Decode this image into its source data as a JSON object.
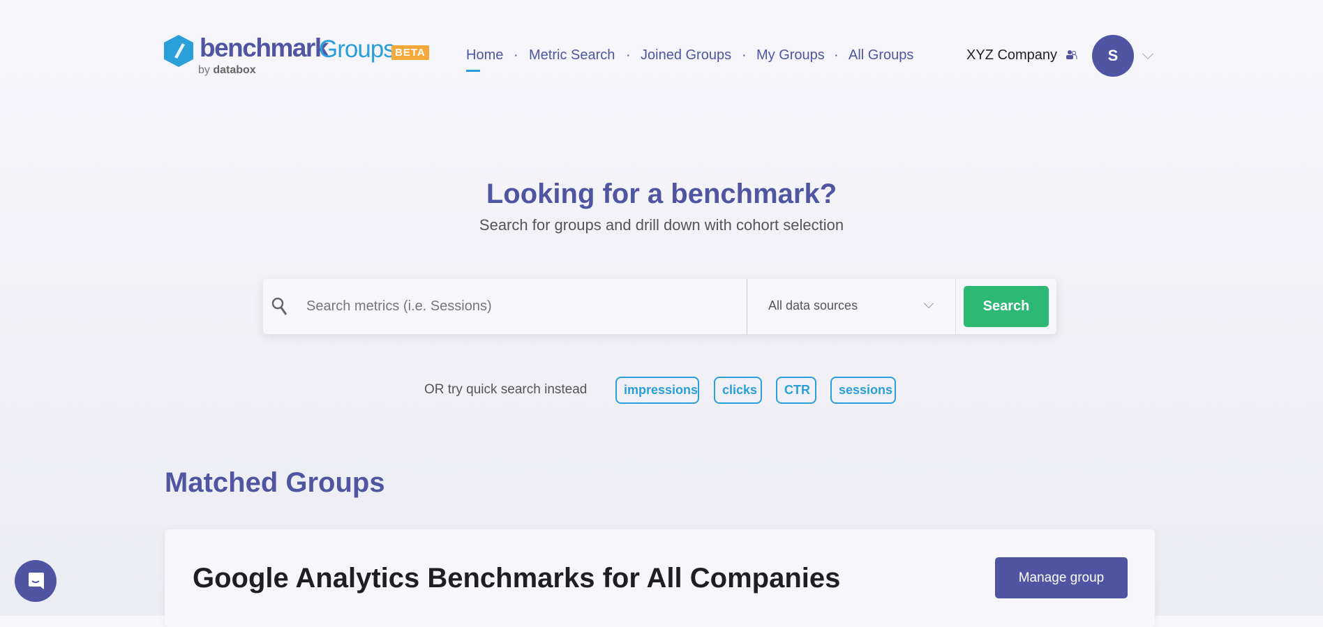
{
  "brand": {
    "name": "benchmark",
    "product": "Groups",
    "badge": "BETA",
    "by": "by",
    "company": "databox"
  },
  "nav": {
    "items": [
      {
        "label": "Home",
        "active": true
      },
      {
        "label": "Metric Search"
      },
      {
        "label": "Joined Groups"
      },
      {
        "label": "My Groups"
      },
      {
        "label": "All Groups"
      }
    ],
    "separator": "·"
  },
  "account": {
    "company": "XYZ Company",
    "avatar_initial": "S"
  },
  "hero": {
    "title": "Looking for a benchmark?",
    "subtitle": "Search for groups and drill down with cohort selection"
  },
  "search": {
    "placeholder": "Search metrics (i.e. Sessions)",
    "value": "",
    "source_selected": "All data sources",
    "button": "Search"
  },
  "quick": {
    "label": "OR try quick search instead",
    "chips": [
      "impressions",
      "clicks",
      "CTR",
      "sessions"
    ]
  },
  "matched": {
    "title": "Matched Groups",
    "groups": [
      {
        "title": "Google Analytics Benchmarks for All Companies",
        "button": "Manage group"
      }
    ]
  },
  "colors": {
    "primary": "#5055a3",
    "accent": "#2a9fd8",
    "success": "#2db873",
    "beta": "#f5a93a"
  }
}
